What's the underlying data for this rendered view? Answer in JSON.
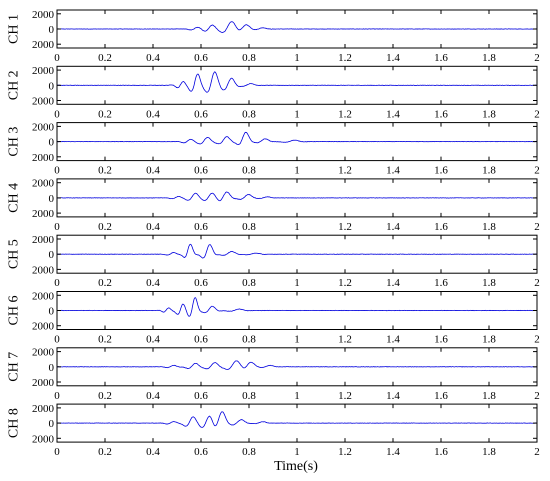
{
  "chart_data": {
    "type": "line",
    "xlabel": "Time(s)",
    "xlim": [
      0,
      2
    ],
    "ylim": [
      -2500,
      2500
    ],
    "x_ticks": [
      "0",
      "0.2",
      "0.4",
      "0.6",
      "0.8",
      "1",
      "1.2",
      "1.4",
      "1.6",
      "1.8",
      "2"
    ],
    "y_ticks": [
      "2000",
      "0",
      "2000"
    ],
    "line_color": "#0000dd",
    "grid": false,
    "noise_amplitude": 25,
    "channels": [
      {
        "label": "CH 1",
        "wavelets": [
          {
            "t": 0.58,
            "a": 250,
            "f": 13,
            "w": 0.03
          },
          {
            "t": 0.64,
            "a": 550,
            "f": 12,
            "w": 0.03
          },
          {
            "t": 0.72,
            "a": 1100,
            "f": 9,
            "w": 0.035
          },
          {
            "t": 0.78,
            "a": 650,
            "f": 9,
            "w": 0.03
          },
          {
            "t": 0.85,
            "a": 180,
            "f": 10,
            "w": 0.03
          }
        ]
      },
      {
        "label": "CH 2",
        "wavelets": [
          {
            "t": 0.52,
            "a": 500,
            "f": 18,
            "w": 0.03
          },
          {
            "t": 0.58,
            "a": 1600,
            "f": 14,
            "w": 0.025
          },
          {
            "t": 0.65,
            "a": 1900,
            "f": 12,
            "w": 0.03
          },
          {
            "t": 0.72,
            "a": 1000,
            "f": 12,
            "w": 0.03
          },
          {
            "t": 0.8,
            "a": 250,
            "f": 10,
            "w": 0.03
          }
        ]
      },
      {
        "label": "CH 3",
        "wavelets": [
          {
            "t": 0.55,
            "a": 300,
            "f": 14,
            "w": 0.03
          },
          {
            "t": 0.62,
            "a": 600,
            "f": 12,
            "w": 0.03
          },
          {
            "t": 0.7,
            "a": 700,
            "f": 11,
            "w": 0.03
          },
          {
            "t": 0.78,
            "a": 1400,
            "f": 10,
            "w": 0.025
          },
          {
            "t": 0.86,
            "a": 400,
            "f": 10,
            "w": 0.03
          },
          {
            "t": 0.98,
            "a": 200,
            "f": 9,
            "w": 0.04
          }
        ]
      },
      {
        "label": "CH 4",
        "wavelets": [
          {
            "t": 0.5,
            "a": 200,
            "f": 14,
            "w": 0.03
          },
          {
            "t": 0.57,
            "a": 650,
            "f": 12,
            "w": 0.03
          },
          {
            "t": 0.64,
            "a": 700,
            "f": 11,
            "w": 0.03
          },
          {
            "t": 0.7,
            "a": 850,
            "f": 11,
            "w": 0.03
          },
          {
            "t": 0.79,
            "a": 500,
            "f": 10,
            "w": 0.03
          },
          {
            "t": 0.87,
            "a": 150,
            "f": 10,
            "w": 0.03
          }
        ]
      },
      {
        "label": "CH 5",
        "wavelets": [
          {
            "t": 0.48,
            "a": 250,
            "f": 14,
            "w": 0.025
          },
          {
            "t": 0.55,
            "a": 1500,
            "f": 13,
            "w": 0.02
          },
          {
            "t": 0.63,
            "a": 1400,
            "f": 12,
            "w": 0.025
          },
          {
            "t": 0.72,
            "a": 400,
            "f": 10,
            "w": 0.03
          },
          {
            "t": 0.82,
            "a": 150,
            "f": 10,
            "w": 0.04
          }
        ]
      },
      {
        "label": "CH 6",
        "wavelets": [
          {
            "t": 0.46,
            "a": 350,
            "f": 20,
            "w": 0.025
          },
          {
            "t": 0.52,
            "a": 900,
            "f": 18,
            "w": 0.025
          },
          {
            "t": 0.57,
            "a": 1900,
            "f": 14,
            "w": 0.02
          },
          {
            "t": 0.64,
            "a": 600,
            "f": 12,
            "w": 0.03
          },
          {
            "t": 0.75,
            "a": 200,
            "f": 10,
            "w": 0.04
          }
        ]
      },
      {
        "label": "CH 7",
        "wavelets": [
          {
            "t": 0.48,
            "a": 200,
            "f": 14,
            "w": 0.03
          },
          {
            "t": 0.57,
            "a": 500,
            "f": 12,
            "w": 0.03
          },
          {
            "t": 0.65,
            "a": 600,
            "f": 11,
            "w": 0.03
          },
          {
            "t": 0.74,
            "a": 900,
            "f": 9,
            "w": 0.035
          },
          {
            "t": 0.8,
            "a": 700,
            "f": 9,
            "w": 0.03
          },
          {
            "t": 0.88,
            "a": 200,
            "f": 10,
            "w": 0.03
          }
        ]
      },
      {
        "label": "CH 8",
        "wavelets": [
          {
            "t": 0.48,
            "a": 200,
            "f": 14,
            "w": 0.03
          },
          {
            "t": 0.56,
            "a": 900,
            "f": 12,
            "w": 0.03
          },
          {
            "t": 0.63,
            "a": 1200,
            "f": 11,
            "w": 0.03
          },
          {
            "t": 0.68,
            "a": 1700,
            "f": 10,
            "w": 0.03
          },
          {
            "t": 0.76,
            "a": 500,
            "f": 10,
            "w": 0.03
          },
          {
            "t": 0.85,
            "a": 200,
            "f": 10,
            "w": 0.03
          }
        ]
      }
    ]
  }
}
